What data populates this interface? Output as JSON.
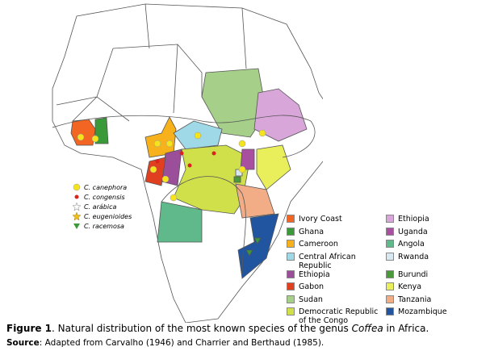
{
  "species_legend": [
    {
      "label": "C. canephora",
      "color": "#f5e41c"
    },
    {
      "label": "C. congensis",
      "color": "#d8241c"
    },
    {
      "label": "C. arábica",
      "color": "#ffffff"
    },
    {
      "label": "C. eugenioides",
      "color": "#f2c21b"
    },
    {
      "label": "C. racemosa",
      "color": "#3a9a3a"
    }
  ],
  "country_legend": [
    {
      "label": "Ivory Coast",
      "color": "#f26522"
    },
    {
      "label": "Ghana",
      "color": "#3a9a3a"
    },
    {
      "label": "Cameroon",
      "color": "#f7b21b"
    },
    {
      "label": "Central African Republic",
      "color": "#9fd8e6"
    },
    {
      "label": "Ethiopia",
      "color": "#9b4f9b"
    },
    {
      "label": "Gabon",
      "color": "#e04020"
    },
    {
      "label": "Sudan",
      "color": "#a6cf8a"
    },
    {
      "label": "Democratic Republic of the Congo",
      "color": "#cfe04a"
    },
    {
      "label": "Ethiopia",
      "color": "#d9a6d9"
    },
    {
      "label": "Uganda",
      "color": "#a94fa0"
    },
    {
      "label": "Angola",
      "color": "#5fb98a"
    },
    {
      "label": "Rwanda",
      "color": "#d8e8f0"
    },
    {
      "label": "Burundi",
      "color": "#4a9a3a"
    },
    {
      "label": "Kenya",
      "color": "#e8ef5a"
    },
    {
      "label": "Tanzania",
      "color": "#f2ad86"
    },
    {
      "label": "Mozambique",
      "color": "#2255a0"
    }
  ],
  "caption": {
    "label": "Figure 1",
    "text": ". Natural distribution of the most known species of the genus ",
    "genus": "Coffea",
    "end": " in Africa."
  },
  "source": {
    "label": "Source",
    "text": ": Adapted from Carvalho (1946) and Charrier and Berthaud (1985)."
  }
}
